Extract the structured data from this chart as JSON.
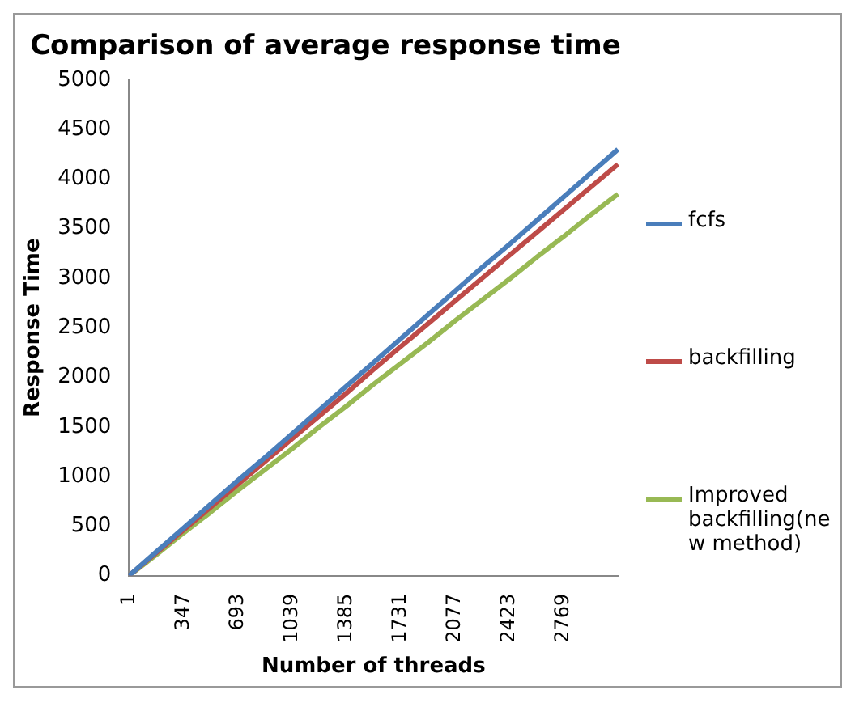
{
  "chart_data": {
    "type": "line",
    "title": "Comparison of average response time",
    "xlabel": "Number of threads",
    "ylabel": "Response Time",
    "categories": [
      "1",
      null,
      "347",
      null,
      "693",
      null,
      "1039",
      null,
      "1385",
      null,
      "1731",
      null,
      "2077",
      null,
      "2423",
      null,
      "2769",
      null,
      null
    ],
    "series": [
      {
        "name": "fcfs",
        "color": "#4a7ebb",
        "values": [
          0,
          240,
          480,
          720,
          960,
          1190,
          1430,
          1670,
          1910,
          2150,
          2390,
          2630,
          2870,
          3110,
          3340,
          3580,
          3820,
          4060,
          4300
        ]
      },
      {
        "name": "backfilling",
        "color": "#be4b48",
        "values": [
          0,
          230,
          460,
          690,
          920,
          1150,
          1380,
          1610,
          1840,
          2080,
          2310,
          2540,
          2770,
          3000,
          3230,
          3460,
          3690,
          3920,
          4150
        ]
      },
      {
        "name": "Improved backfilling(new method)",
        "color": "#98b954",
        "values": [
          0,
          210,
          430,
          640,
          860,
          1070,
          1280,
          1500,
          1710,
          1930,
          2140,
          2350,
          2570,
          2780,
          2990,
          3210,
          3420,
          3640,
          3850
        ]
      }
    ],
    "ylim": [
      0,
      5000
    ],
    "yticks": [
      0,
      500,
      1000,
      1500,
      2000,
      2500,
      3000,
      3500,
      4000,
      4500,
      5000
    ],
    "grid": false,
    "legend": "right",
    "marker": "none",
    "line_style": "solid"
  }
}
